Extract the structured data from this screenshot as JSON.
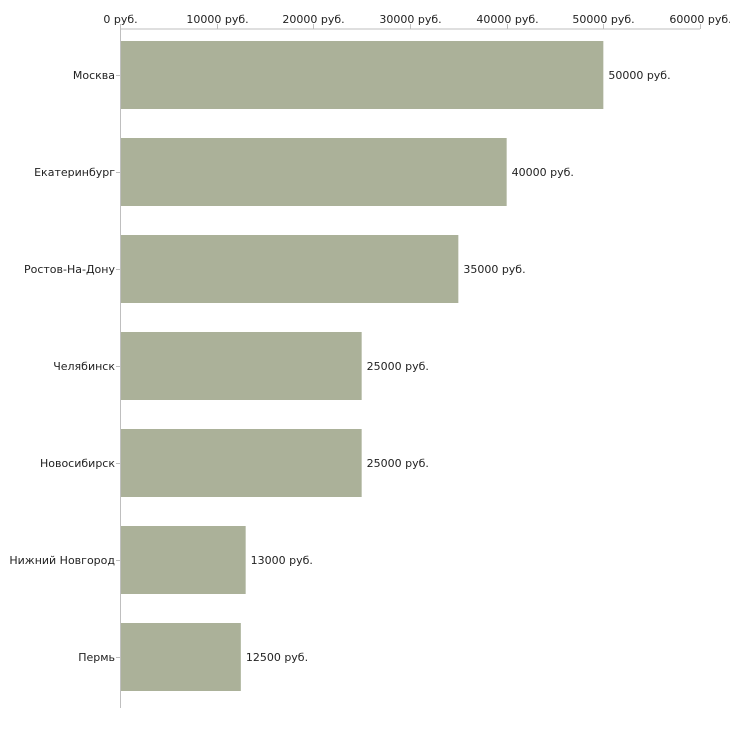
{
  "chart_data": {
    "type": "bar",
    "orientation": "horizontal",
    "categories": [
      "Москва",
      "Екатеринбург",
      "Ростов-На-Дону",
      "Челябинск",
      "Новосибирск",
      "Нижний Новгород",
      "Пермь"
    ],
    "values": [
      50000,
      40000,
      35000,
      25000,
      25000,
      13000,
      12500
    ],
    "value_labels": [
      "50000 руб.",
      "40000 руб.",
      "35000 руб.",
      "25000 руб.",
      "25000 руб.",
      "13000 руб.",
      "12500 руб."
    ],
    "x_ticks": [
      0,
      10000,
      20000,
      30000,
      40000,
      50000,
      60000
    ],
    "x_tick_labels": [
      "0 руб.",
      "10000 руб.",
      "20000 руб.",
      "30000 руб.",
      "40000 руб.",
      "50000 руб.",
      "60000 руб."
    ],
    "xlim": [
      0,
      60000
    ],
    "xaxis_position": "top",
    "title": "",
    "xlabel": "",
    "ylabel": "",
    "grid": false,
    "bar_color": "#abb199",
    "axis_color": "#bfbfbf"
  }
}
